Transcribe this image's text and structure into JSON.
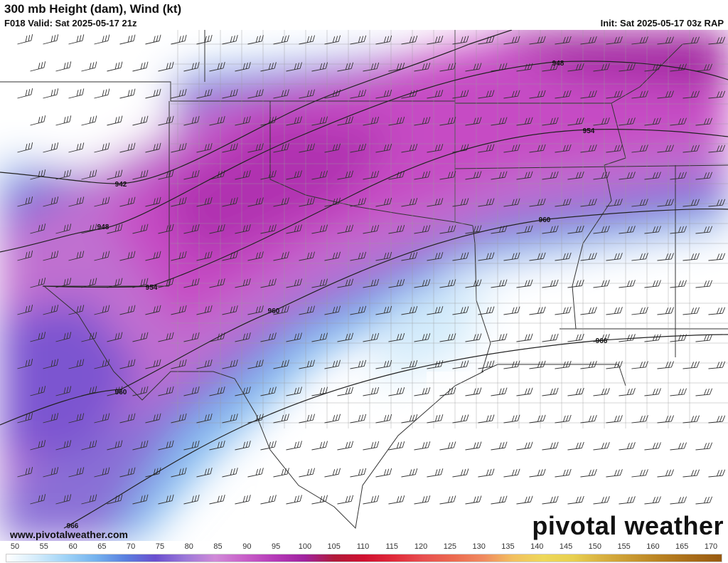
{
  "header": {
    "title": "300 mb Height (dam), Wind (kt)",
    "valid": "F018 Valid: Sat 2025-05-17 21z",
    "init": "Init: Sat 2025-05-17 03z RAP"
  },
  "footer": {
    "website": "www.pivotalweather.com",
    "logo_text": "pivotal weather"
  },
  "contours": {
    "unit": "dam",
    "labels": [
      "942",
      "948",
      "948",
      "954",
      "954",
      "960",
      "960",
      "960",
      "966",
      "966"
    ]
  },
  "colorbar": {
    "unit": "kt",
    "ticks": [
      "50",
      "55",
      "60",
      "65",
      "70",
      "75",
      "80",
      "85",
      "90",
      "95",
      "100",
      "105",
      "110",
      "115",
      "120",
      "125",
      "130",
      "135",
      "140",
      "145",
      "150",
      "155",
      "160",
      "165",
      "170"
    ],
    "colors": [
      "#ffffff",
      "#d4ecfb",
      "#9fd3f7",
      "#74b2ee",
      "#5a7fdf",
      "#6a4fcf",
      "#9b78d8",
      "#d08ad8",
      "#c85fc8",
      "#b53ab8",
      "#a0239f",
      "#b01a3a",
      "#d01030",
      "#e02a3a",
      "#e85050",
      "#ec6a50",
      "#f08a60",
      "#f2c060",
      "#eed85a",
      "#e8d050",
      "#d8b040",
      "#c89830",
      "#b88020",
      "#a86c18",
      "#985a10"
    ]
  }
}
